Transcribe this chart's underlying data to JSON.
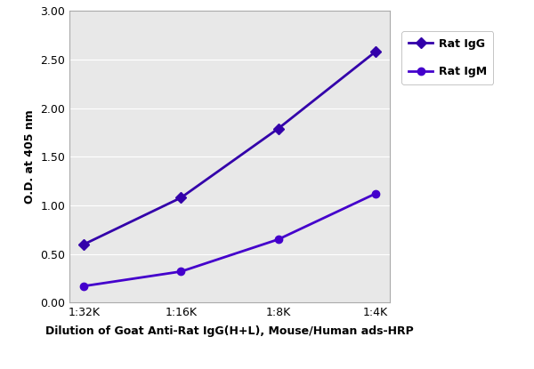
{
  "x_labels": [
    "1:32K",
    "1:16K",
    "1:8K",
    "1:4K"
  ],
  "x_positions": [
    0,
    1,
    2,
    3
  ],
  "rat_IgG": [
    0.6,
    1.08,
    1.79,
    2.58
  ],
  "rat_IgM": [
    0.17,
    0.32,
    0.65,
    1.12
  ],
  "line_color_IgG": "#3300aa",
  "line_color_IgM": "#4400cc",
  "ylabel": "O.D. at 405 nm",
  "xlabel": "Dilution of Goat Anti-Rat IgG(H+L), Mouse/Human ads-HRP",
  "ylim": [
    0.0,
    3.0
  ],
  "yticks": [
    0.0,
    0.5,
    1.0,
    1.5,
    2.0,
    2.5,
    3.0
  ],
  "legend_labels": [
    "Rat IgG",
    "Rat IgM"
  ],
  "bg_color": "#ffffff",
  "plot_bg_color": "#e8e8e8",
  "grid_color": "#ffffff",
  "linewidth": 2.0,
  "markersize": 6
}
